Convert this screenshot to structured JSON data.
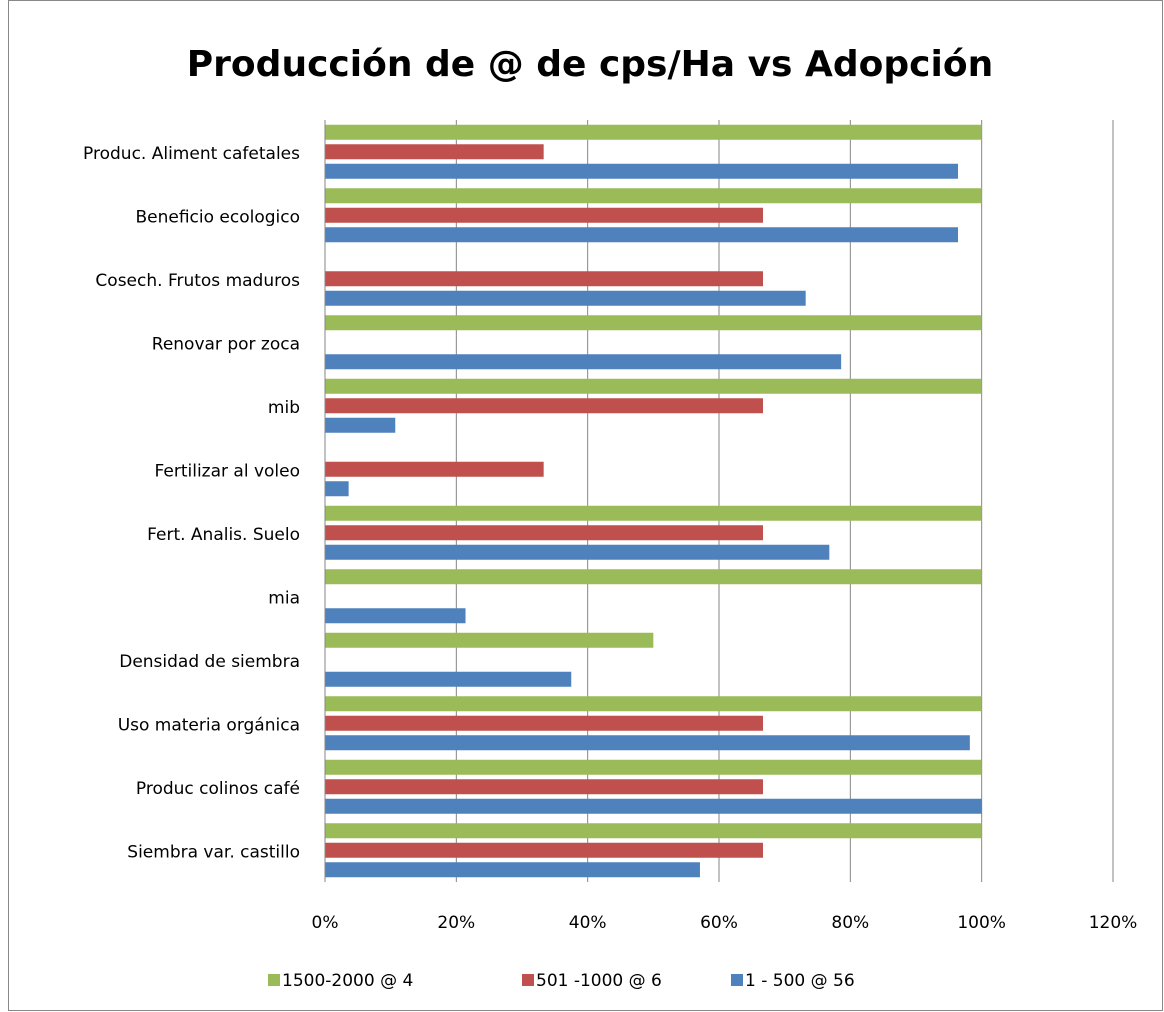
{
  "chart_data": {
    "type": "bar",
    "orientation": "horizontal",
    "title": "Producción de @ de cps/Ha vs Adopción",
    "categories": [
      "Produc. Aliment cafetales",
      "Beneficio ecologico",
      "Cosech. Frutos maduros",
      "Renovar por zoca",
      "mib",
      "Fertilizar al voleo",
      "Fert. Analis. Suelo",
      "mia",
      "Densidad de siembra",
      "Uso materia orgánica",
      "Produc colinos café",
      "Siembra var. castillo"
    ],
    "series": [
      {
        "name": "1500-2000 @ 4",
        "color": "#9bbb59",
        "values": [
          100,
          100,
          0,
          100,
          100,
          0,
          100,
          100,
          50,
          100,
          100,
          100
        ]
      },
      {
        "name": "501 -1000 @ 6",
        "color": "#c0504d",
        "values": [
          33.3,
          66.7,
          66.7,
          0,
          66.7,
          33.3,
          66.7,
          0,
          0,
          66.7,
          66.7,
          66.7
        ]
      },
      {
        "name": "1 - 500 @ 56",
        "color": "#4f81bd",
        "values": [
          96.4,
          96.4,
          73.2,
          78.6,
          10.7,
          3.6,
          76.8,
          21.4,
          37.5,
          98.2,
          100,
          57.1
        ]
      }
    ],
    "xlim": [
      0,
      120
    ],
    "xticks": [
      {
        "value": 0,
        "label": "0%"
      },
      {
        "value": 20,
        "label": "20%"
      },
      {
        "value": 40,
        "label": "40%"
      },
      {
        "value": 60,
        "label": "60%"
      },
      {
        "value": 80,
        "label": "80%"
      },
      {
        "value": 100,
        "label": "100%"
      },
      {
        "value": 120,
        "label": "120%"
      }
    ],
    "grid": true,
    "legend": "bottom"
  }
}
